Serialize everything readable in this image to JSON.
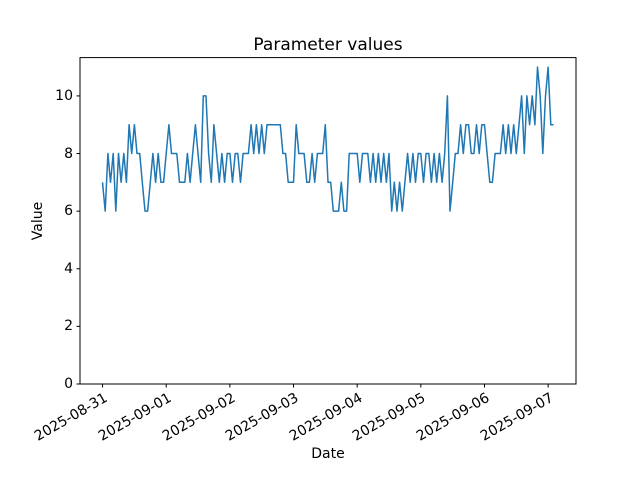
{
  "chart_data": {
    "type": "line",
    "title": "Parameter values",
    "xlabel": "Date",
    "ylabel": "Value",
    "line_color": "#1f77b4",
    "grid": false,
    "legend": null,
    "x_tick_labels": [
      "2025-08-31",
      "2025-09-01",
      "2025-09-02",
      "2025-09-03",
      "2025-09-04",
      "2025-09-05",
      "2025-09-06",
      "2025-09-07"
    ],
    "x_points_per_day": 24,
    "y_ticks": [
      0,
      2,
      4,
      6,
      8,
      10
    ],
    "ylim": [
      0,
      11.33
    ],
    "values": [
      7,
      6,
      8,
      7,
      8,
      6,
      8,
      7,
      8,
      7,
      9,
      8,
      9,
      8,
      8,
      7,
      6,
      6,
      7,
      8,
      7,
      8,
      7,
      7,
      8,
      9,
      8,
      8,
      8,
      7,
      7,
      7,
      8,
      7,
      8,
      9,
      8,
      7,
      10,
      10,
      8,
      7,
      9,
      8,
      7,
      8,
      7,
      8,
      8,
      7,
      8,
      8,
      7,
      8,
      8,
      8,
      9,
      8,
      9,
      8,
      9,
      8,
      9,
      9,
      9,
      9,
      9,
      9,
      8,
      8,
      7,
      7,
      7,
      9,
      8,
      8,
      8,
      7,
      7,
      8,
      7,
      8,
      8,
      8,
      9,
      7,
      7,
      6,
      6,
      6,
      7,
      6,
      6,
      8,
      8,
      8,
      8,
      7,
      8,
      8,
      8,
      7,
      8,
      7,
      8,
      7,
      8,
      7,
      8,
      6,
      7,
      6,
      7,
      6,
      7,
      8,
      7,
      8,
      7,
      8,
      8,
      7,
      8,
      8,
      7,
      8,
      7,
      8,
      7,
      8,
      10,
      6,
      7,
      8,
      8,
      9,
      8,
      9,
      9,
      8,
      8,
      9,
      8,
      9,
      9,
      8,
      7,
      7,
      8,
      8,
      8,
      9,
      8,
      9,
      8,
      9,
      8,
      9,
      10,
      8,
      10,
      9,
      10,
      9,
      11,
      10,
      8,
      10,
      11,
      9,
      9
    ]
  }
}
